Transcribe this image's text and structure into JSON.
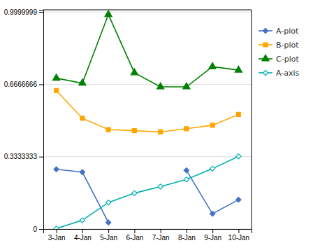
{
  "chart_data": {
    "type": "line",
    "categories": [
      "3-Jan",
      "4-Jan",
      "5-Jan",
      "6-Jan",
      "7-Jan",
      "8-Jan",
      "9-Jan",
      "10-Jan"
    ],
    "series": [
      {
        "name": "A-plot",
        "color": "#4472C4",
        "marker": "diamond",
        "values": [
          0.275,
          0.262,
          0.03,
          null,
          null,
          0.27,
          0.07,
          0.135
        ]
      },
      {
        "name": "B-plot",
        "color": "#FFA500",
        "marker": "square",
        "values": [
          0.638,
          0.51,
          0.458,
          0.453,
          0.447,
          0.462,
          0.478,
          0.528
        ]
      },
      {
        "name": "C-plot",
        "color": "#008000",
        "marker": "triangle",
        "values": [
          0.695,
          0.672,
          0.988,
          0.72,
          0.655,
          0.655,
          0.748,
          0.732
        ]
      },
      {
        "name": "A-axis",
        "color": "#00B0B0",
        "marker": "diamond-open",
        "values": [
          0.002,
          0.04,
          0.122,
          0.165,
          0.195,
          0.228,
          0.278,
          0.335
        ]
      }
    ],
    "ylim": [
      0,
      1.01
    ],
    "yticks": [
      0,
      0.3333333,
      0.6666666,
      0.9999999
    ],
    "grid": true,
    "legend": "right"
  }
}
